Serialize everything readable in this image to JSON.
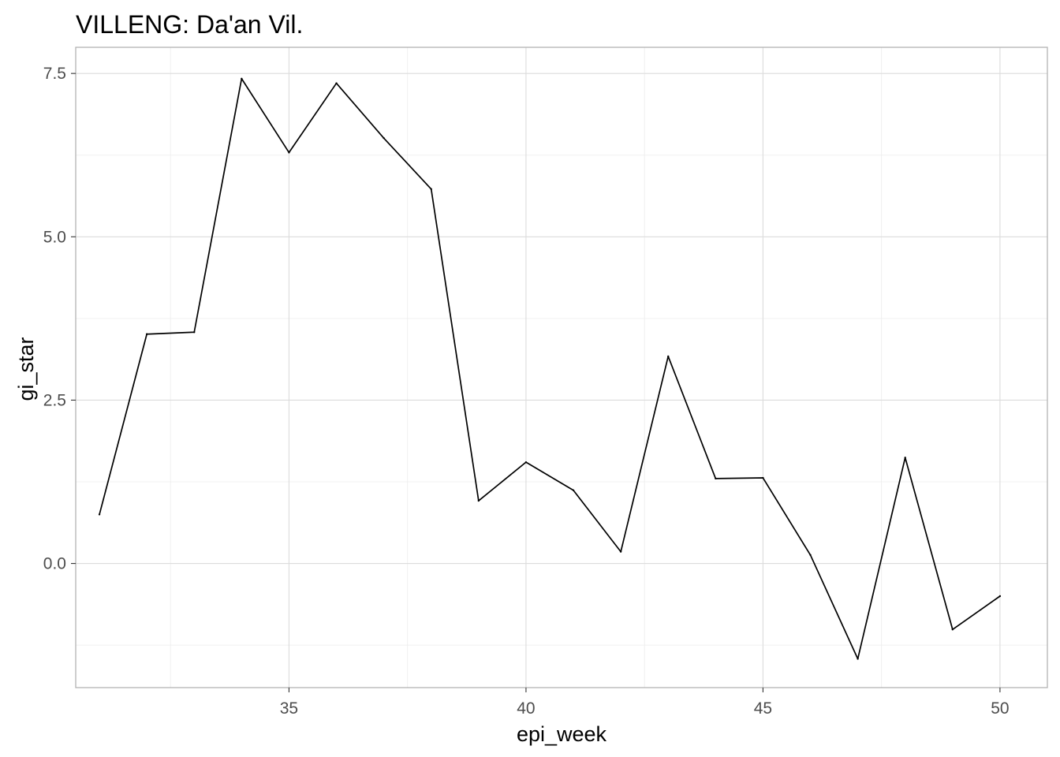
{
  "chart_data": {
    "type": "line",
    "title": "VILLENG: Da'an Vil.",
    "xlabel": "epi_week",
    "ylabel": "gi_star",
    "xlim": [
      30.5,
      51
    ],
    "ylim": [
      -1.9,
      7.9
    ],
    "x_ticks": [
      35,
      40,
      45,
      50
    ],
    "x_tick_labels": [
      "35",
      "40",
      "45",
      "50"
    ],
    "y_ticks": [
      0,
      2.5,
      5,
      7.5
    ],
    "y_tick_labels": [
      "0.0",
      "2.5",
      "5.0",
      "7.5"
    ],
    "grid": true,
    "line_color": "#000000",
    "x": [
      31,
      32,
      33,
      34,
      35,
      36,
      37,
      38,
      39,
      40,
      41,
      42,
      43,
      44,
      45,
      46,
      47,
      48,
      49,
      50
    ],
    "y": [
      0.75,
      3.51,
      3.54,
      7.42,
      6.29,
      7.35,
      6.51,
      5.73,
      0.96,
      1.55,
      1.12,
      0.18,
      3.17,
      1.3,
      1.31,
      0.13,
      -1.46,
      1.62,
      -1.01,
      -0.5
    ]
  }
}
